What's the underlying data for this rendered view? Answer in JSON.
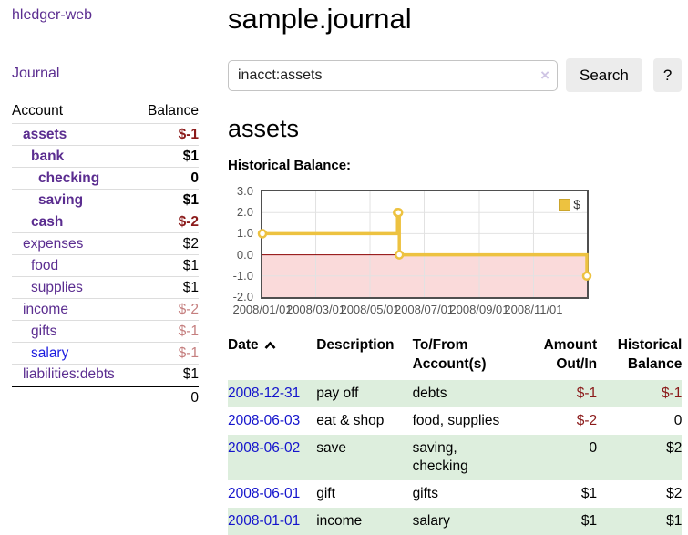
{
  "app": {
    "title": "hledger-web",
    "journal_link": "Journal"
  },
  "sidebar": {
    "header": {
      "account": "Account",
      "balance": "Balance"
    },
    "accounts": [
      {
        "name": "assets",
        "balance": "$-1"
      },
      {
        "name": "bank",
        "balance": "$1"
      },
      {
        "name": "checking",
        "balance": "0"
      },
      {
        "name": "saving",
        "balance": "$1"
      },
      {
        "name": "cash",
        "balance": "$-2"
      },
      {
        "name": "expenses",
        "balance": "$2"
      },
      {
        "name": "food",
        "balance": "$1"
      },
      {
        "name": "supplies",
        "balance": "$1"
      },
      {
        "name": "income",
        "balance": "$-2"
      },
      {
        "name": "gifts",
        "balance": "$-1"
      },
      {
        "name": "salary",
        "balance": "$-1"
      },
      {
        "name": "liabilities:debts",
        "balance": "$1"
      }
    ],
    "total": "0"
  },
  "header": {
    "title": "sample.journal"
  },
  "search": {
    "value": "inacct:assets",
    "clear_icon": "×",
    "button_label": "Search",
    "help_label": "?"
  },
  "account_page": {
    "heading": "assets",
    "chart_title": "Historical Balance:"
  },
  "chart_data": {
    "type": "line",
    "step": true,
    "title": "Historical Balance:",
    "series": [
      {
        "name": "$",
        "color": "#edc240",
        "points": [
          [
            "2008-01-01",
            1
          ],
          [
            "2008-06-01",
            2
          ],
          [
            "2008-06-02",
            2
          ],
          [
            "2008-06-03",
            0
          ],
          [
            "2008-12-31",
            -1
          ]
        ]
      }
    ],
    "x_start": "2008-01-01",
    "x_end": "2008-12-31",
    "xticks": [
      "2008/01/01",
      "2008/03/01",
      "2008/05/01",
      "2008/07/01",
      "2008/09/01",
      "2008/11/01"
    ],
    "yticks": [
      "3.0",
      "2.0",
      "1.0",
      "0.0",
      "-1.0",
      "-2.0"
    ],
    "ylim": [
      -2,
      3
    ],
    "grid": true,
    "legend_position": "top-right",
    "colors": {
      "grid": "#e2e2e2",
      "zero_line": "#8b0000",
      "negative_region": "#fadada",
      "border": "#4f4f4f",
      "tick_text": "#545454"
    }
  },
  "register_table": {
    "columns": {
      "date": "Date",
      "description": "Description",
      "accounts": "To/From Account(s)",
      "amount": "Amount Out/In",
      "historical": "Historical Balance"
    },
    "rows": [
      {
        "date": "2008-12-31",
        "description": "pay off",
        "accounts": "debts",
        "amount": "$-1",
        "historical": "$-1"
      },
      {
        "date": "2008-06-03",
        "description": "eat & shop",
        "accounts": "food, supplies",
        "amount": "$-2",
        "historical": "0"
      },
      {
        "date": "2008-06-02",
        "description": "save",
        "accounts": "saving, checking",
        "amount": "0",
        "historical": "$2"
      },
      {
        "date": "2008-06-01",
        "description": "gift",
        "accounts": "gifts",
        "amount": "$1",
        "historical": "$2"
      },
      {
        "date": "2008-01-01",
        "description": "income",
        "accounts": "salary",
        "amount": "$1",
        "historical": "$1"
      }
    ]
  },
  "colors": {
    "link_purple": "#5b2d90",
    "link_blue": "#1b1be0",
    "negative_strong": "#8b1a1a",
    "negative_muted": "#c57f7f",
    "row_green": "#ddeedd",
    "series_gold": "#edc240"
  }
}
